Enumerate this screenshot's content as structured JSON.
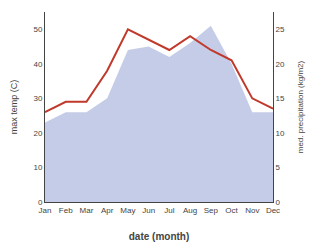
{
  "chart_data": {
    "type": "line",
    "xlabel": "date (month)",
    "ylabel": "max temp (C)",
    "y2label": "med. precipitation (kg/m2)",
    "categories": [
      "Jan",
      "Feb",
      "Mar",
      "Apr",
      "May",
      "Jun",
      "Jul",
      "Aug",
      "Sep",
      "Oct",
      "Nov",
      "Dec"
    ],
    "series": [
      {
        "type": "area",
        "color": "#c5cce8",
        "values": [
          23,
          26,
          26,
          30,
          44,
          45,
          42,
          46,
          51,
          40,
          26,
          26
        ]
      },
      {
        "type": "line",
        "color": "#c0392b",
        "axis": "y2",
        "values": [
          13,
          14.5,
          14.5,
          19,
          25,
          23.5,
          22,
          24,
          22,
          20.5,
          15,
          13.5
        ]
      }
    ],
    "ylim": [
      0,
      55
    ],
    "yticks": [
      0,
      10,
      20,
      30,
      40,
      50
    ],
    "y2lim": [
      0,
      27.5
    ],
    "y2ticks": [
      0,
      5,
      10,
      15,
      20,
      25
    ],
    "grid": false
  }
}
